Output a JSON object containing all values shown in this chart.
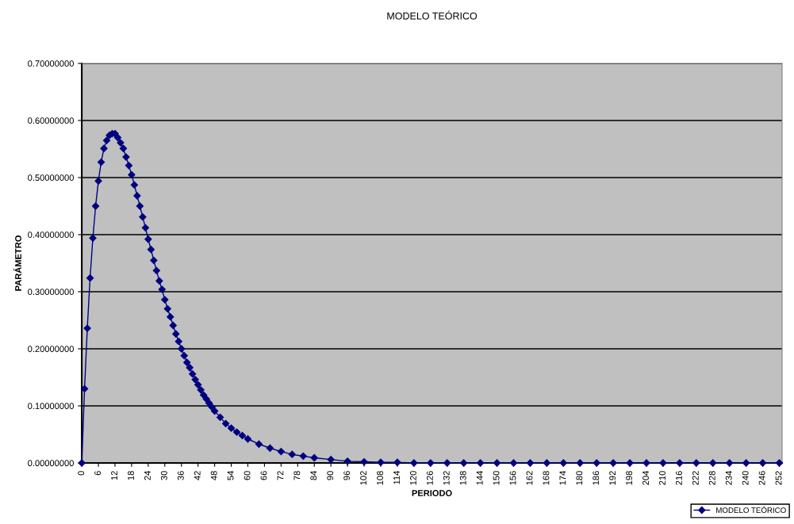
{
  "chart_data": {
    "type": "line",
    "title": "MODELO TEÓRICO",
    "xlabel": "PERIODO",
    "ylabel": "PARÁMETRO",
    "xlim": [
      0,
      253
    ],
    "xticks": [
      0,
      6,
      12,
      18,
      24,
      30,
      36,
      42,
      48,
      54,
      60,
      66,
      72,
      78,
      84,
      90,
      96,
      102,
      108,
      114,
      120,
      126,
      132,
      138,
      144,
      150,
      156,
      162,
      168,
      174,
      180,
      186,
      192,
      198,
      204,
      210,
      216,
      222,
      228,
      234,
      240,
      246,
      252
    ],
    "ylim": [
      0,
      0.7
    ],
    "yticks": [
      {
        "value": 0,
        "label": "0.00000000"
      },
      {
        "value": 0.1,
        "label": "0.10000000"
      },
      {
        "value": 0.2,
        "label": "0.20000000"
      },
      {
        "value": 0.3,
        "label": "0.30000000"
      },
      {
        "value": 0.4,
        "label": "0.40000000"
      },
      {
        "value": 0.5,
        "label": "0.50000000"
      },
      {
        "value": 0.6,
        "label": "0.60000000"
      },
      {
        "value": 0.7,
        "label": "0.70000000"
      }
    ],
    "grid": "y",
    "legend": "bottom right",
    "marker": "diamond",
    "line_style": "solid",
    "series": [
      {
        "name": "MODELO TEÓRICO",
        "color": "#000080",
        "x": [
          0,
          1,
          2,
          3,
          4,
          5,
          6,
          7,
          8,
          9,
          10,
          11,
          12,
          13,
          14,
          15,
          16,
          17,
          18,
          19,
          20,
          21,
          22,
          23,
          24,
          25,
          26,
          27,
          28,
          29,
          30,
          31,
          32,
          33,
          34,
          35,
          36,
          37,
          38,
          39,
          40,
          41,
          42,
          43,
          44,
          45,
          46,
          47,
          48,
          50,
          52,
          54,
          56,
          58,
          60,
          64,
          68,
          72,
          76,
          80,
          84,
          90,
          96,
          102,
          108,
          114,
          120,
          126,
          132,
          138,
          144,
          150,
          156,
          162,
          168,
          174,
          180,
          186,
          192,
          198,
          204,
          210,
          216,
          222,
          228,
          234,
          240,
          246,
          252
        ],
        "values": [
          0,
          0.13,
          0.236,
          0.324,
          0.394,
          0.45,
          0.494,
          0.527,
          0.551,
          0.565,
          0.574,
          0.577,
          0.577,
          0.57,
          0.561,
          0.551,
          0.536,
          0.521,
          0.505,
          0.487,
          0.468,
          0.45,
          0.431,
          0.412,
          0.392,
          0.374,
          0.355,
          0.337,
          0.319,
          0.304,
          0.286,
          0.27,
          0.256,
          0.241,
          0.226,
          0.213,
          0.2,
          0.188,
          0.176,
          0.167,
          0.156,
          0.146,
          0.137,
          0.128,
          0.119,
          0.112,
          0.105,
          0.098,
          0.091,
          0.08,
          0.069,
          0.061,
          0.054,
          0.048,
          0.042,
          0.033,
          0.026,
          0.02,
          0.015,
          0.012,
          0.009,
          0.006,
          0.003,
          0.002,
          0.001,
          0.001,
          0,
          0,
          0,
          0,
          0,
          0,
          0,
          0,
          0,
          0,
          0,
          0,
          0,
          0,
          0,
          0,
          0,
          0,
          0,
          0,
          0,
          0,
          0
        ]
      }
    ]
  }
}
